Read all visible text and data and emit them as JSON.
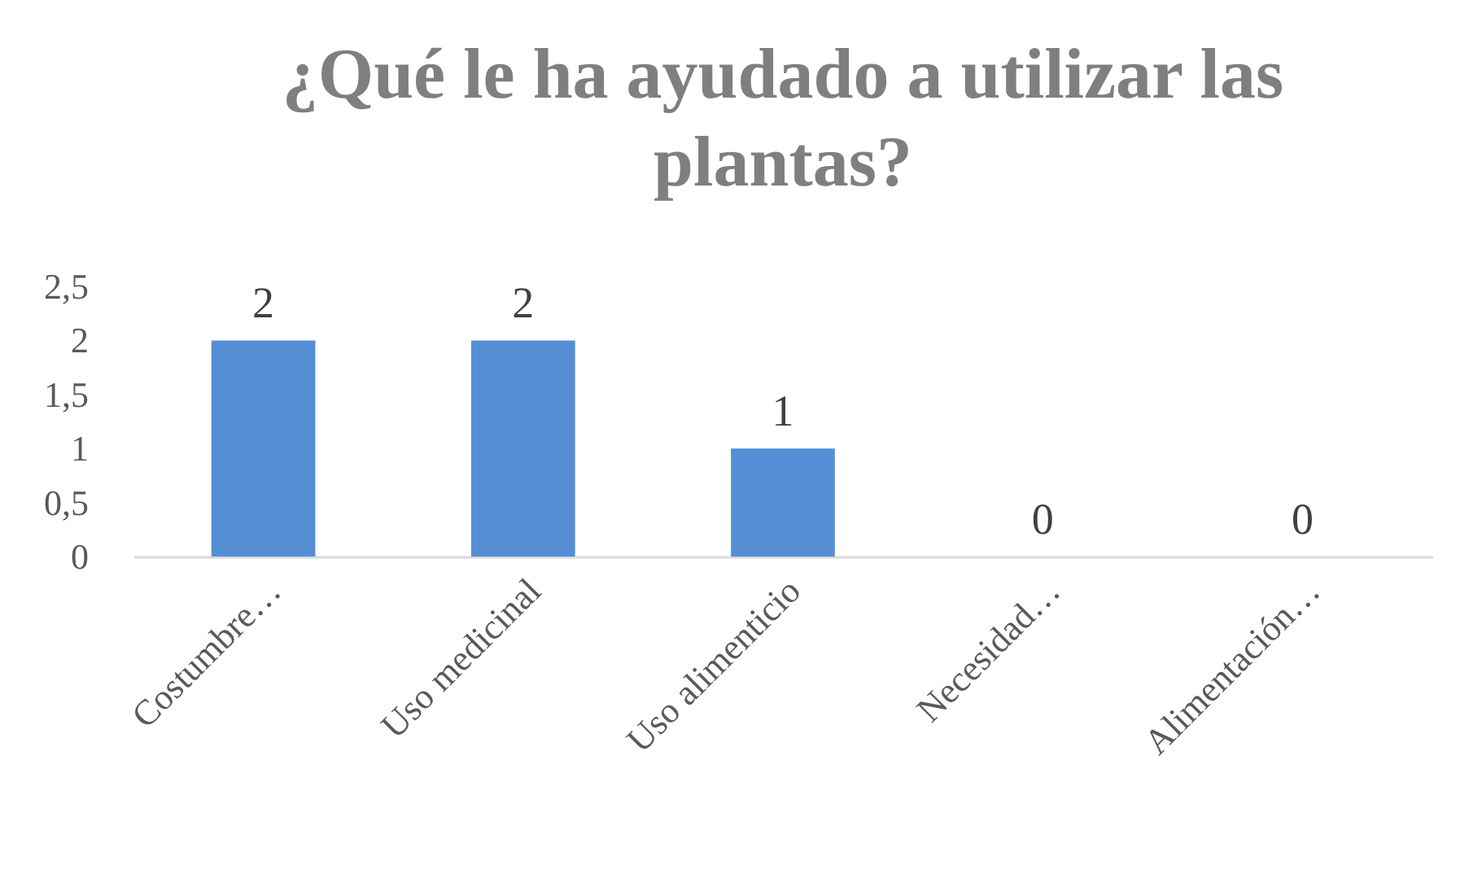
{
  "chart_data": {
    "type": "bar",
    "title": "¿Qué le ha ayudado a utilizar las plantas?",
    "categories": [
      "Costumbre…",
      "Uso medicinal",
      "Uso alimenticio",
      "Necesidad…",
      "Alimentación…"
    ],
    "values": [
      2,
      2,
      1,
      0,
      0
    ],
    "color": "#558ed5",
    "ylim": [
      0,
      2.5
    ],
    "yticks": [
      0,
      {
        "value": 0.5,
        "label": "0,5"
      },
      1,
      {
        "value": 1.5,
        "label": "1,5"
      },
      2,
      {
        "value": 2.5,
        "label": "2,5"
      }
    ],
    "grid": false,
    "data_labels": true
  }
}
